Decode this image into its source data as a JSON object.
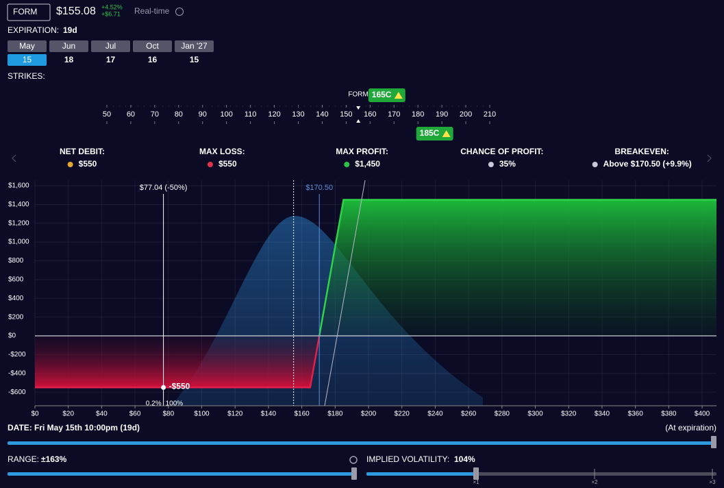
{
  "header": {
    "ticker": "FORM",
    "price": "$155.08",
    "change_pct": "+4.52%",
    "change_abs": "+$6.71",
    "feed": "Real-time"
  },
  "expiration": {
    "label": "EXPIRATION:",
    "value": "19d",
    "months": [
      "May",
      "Jun",
      "Jul",
      "Oct",
      "Jan '27"
    ],
    "days": [
      15,
      18,
      17,
      16,
      15
    ],
    "selected": 0
  },
  "strikes": {
    "label": "STRIKES:",
    "ticks": [
      50,
      60,
      70,
      80,
      90,
      100,
      110,
      120,
      130,
      140,
      150,
      160,
      170,
      180,
      190,
      200,
      210
    ],
    "spot_label": "FORM",
    "spot": 155.08,
    "legs": [
      {
        "label": "165C",
        "strike": 165
      },
      {
        "label": "185C",
        "strike": 185
      }
    ]
  },
  "stats": [
    {
      "label": "NET DEBIT:",
      "value": "$550"
    },
    {
      "label": "MAX LOSS:",
      "value": "$550"
    },
    {
      "label": "MAX PROFIT:",
      "value": "$1,450"
    },
    {
      "label": "CHANCE OF PROFIT:",
      "value": "35%"
    },
    {
      "label": "BREAKEVEN:",
      "value": "Above $170.50 (+9.9%)"
    }
  ],
  "chart": {
    "type": "line",
    "x": [
      0,
      165,
      185,
      408.6
    ],
    "values": [
      -550,
      -550,
      1450,
      1450
    ],
    "xlim": [
      0,
      408.6
    ],
    "ylim": [
      -745,
      1658
    ],
    "xticks": [
      {
        "value": 0,
        "label": "$0"
      },
      {
        "value": 20,
        "label": "$20"
      },
      {
        "value": 40,
        "label": "$40"
      },
      {
        "value": 60,
        "label": "$60"
      },
      {
        "value": 80,
        "label": "$80"
      },
      {
        "value": 100,
        "label": "$100"
      },
      {
        "value": 120,
        "label": "$120"
      },
      {
        "value": 140,
        "label": "$140"
      },
      {
        "value": 160,
        "label": "$160"
      },
      {
        "value": 180,
        "label": "$180"
      },
      {
        "value": 200,
        "label": "$200"
      },
      {
        "value": 220,
        "label": "$220"
      },
      {
        "value": 240,
        "label": "$240"
      },
      {
        "value": 260,
        "label": "$260"
      },
      {
        "value": 280,
        "label": "$280"
      },
      {
        "value": 300,
        "label": "$300"
      },
      {
        "value": 320,
        "label": "$320"
      },
      {
        "value": 340,
        "label": "$340"
      },
      {
        "value": 360,
        "label": "$360"
      },
      {
        "value": 380,
        "label": "$380"
      },
      {
        "value": 400,
        "label": "$400"
      }
    ],
    "yticks": [
      {
        "value": -600,
        "label": "-$600"
      },
      {
        "value": -400,
        "label": "-$400"
      },
      {
        "value": -200,
        "label": "-$200"
      },
      {
        "value": 0,
        "label": "$0"
      },
      {
        "value": 200,
        "label": "$200"
      },
      {
        "value": 400,
        "label": "$400"
      },
      {
        "value": 600,
        "label": "$600"
      },
      {
        "value": 800,
        "label": "$800"
      },
      {
        "value": 1000,
        "label": "$1,000"
      },
      {
        "value": 1200,
        "label": "$1,200"
      },
      {
        "value": 1400,
        "label": "$1,400"
      },
      {
        "value": 1600,
        "label": "$1,600"
      }
    ],
    "grid": true,
    "spot": 155.08,
    "markers": [
      {
        "label": "$77.04 (-50%)",
        "x": 77.04,
        "color": "#ffffff"
      },
      {
        "label": "$170.50",
        "x": 170.5,
        "color": "#5b8fd6"
      }
    ],
    "point": {
      "x": 77.04,
      "y": -550,
      "label": "-$550"
    },
    "probability_labels": [
      "0.2%",
      "100%"
    ]
  },
  "date": {
    "label": "DATE:",
    "value": "Fri May 15th 10:00pm (19d)",
    "end_label": "(At expiration)"
  },
  "range": {
    "label": "RANGE:",
    "value": "±163%"
  },
  "iv": {
    "label": "IMPLIED VOLATILITY:",
    "value": "104%",
    "marks": [
      "×1",
      "×2",
      "×3"
    ]
  }
}
